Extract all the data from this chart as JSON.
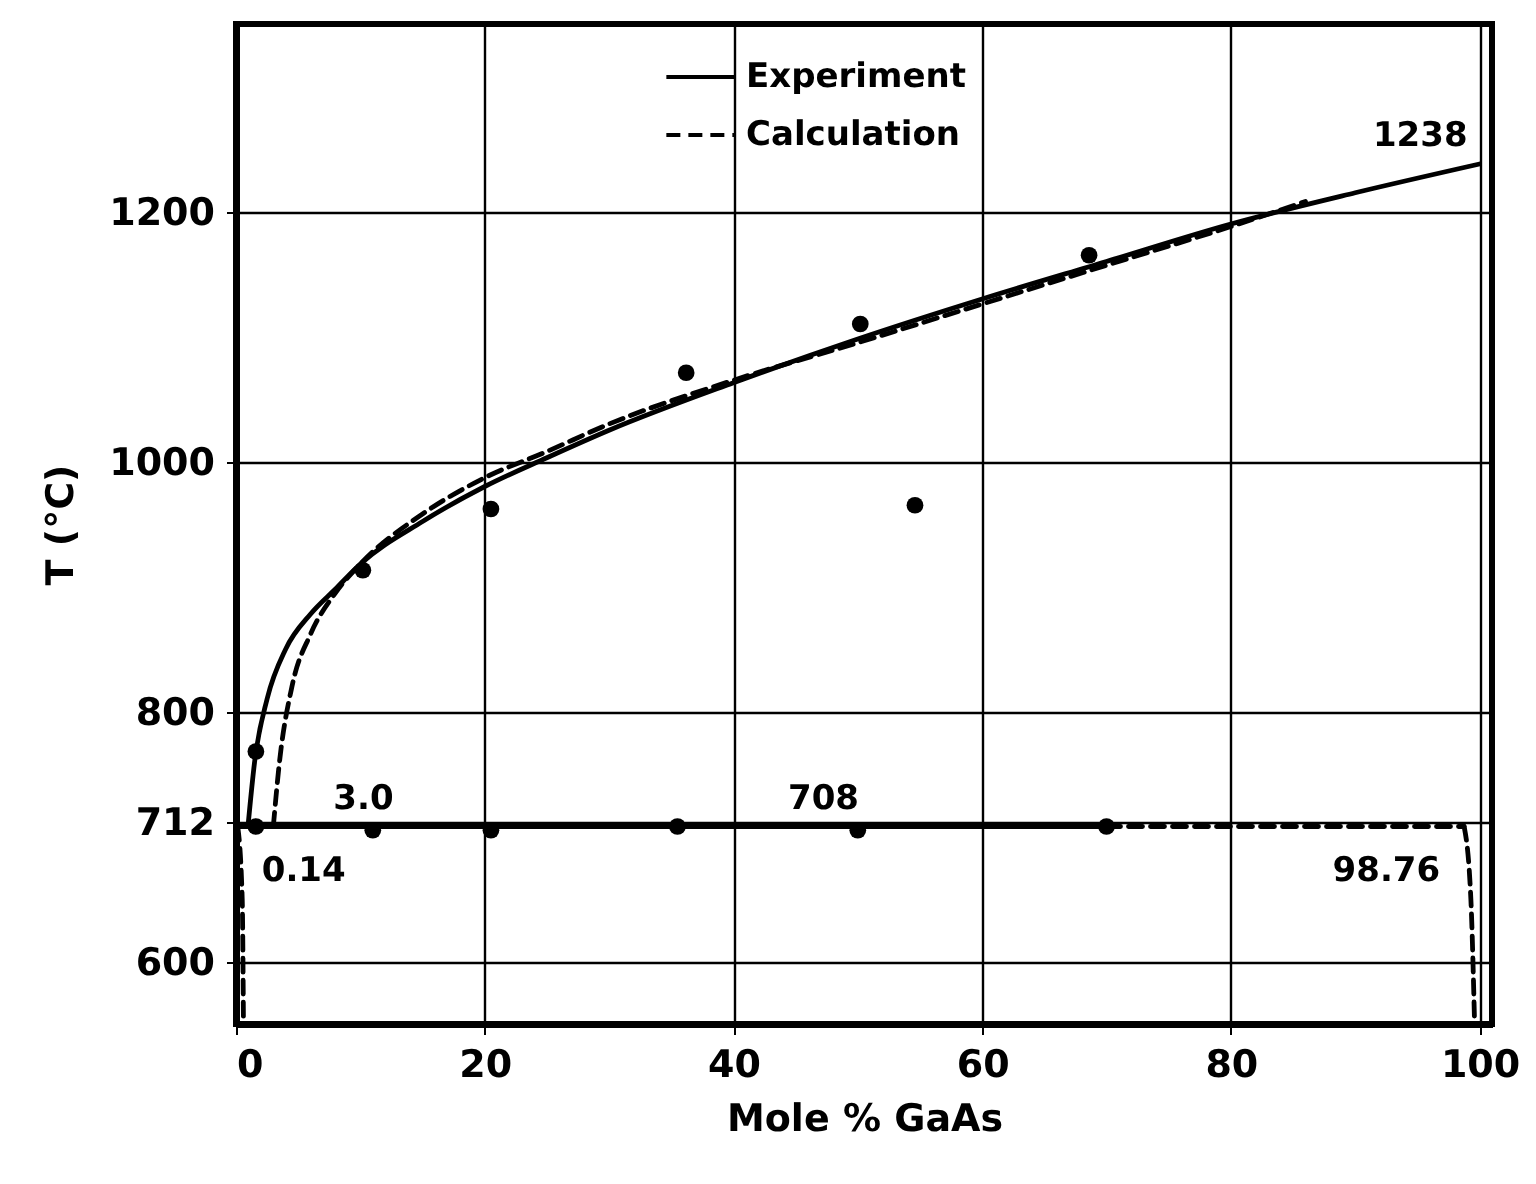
{
  "chart_data": {
    "type": "line",
    "xlabel": "Mole % GaAs",
    "ylabel": "T (°C)",
    "xlim": [
      0,
      101
    ],
    "ylim": [
      550,
      1350
    ],
    "xticks": [
      0,
      20,
      40,
      60,
      80,
      100
    ],
    "yticks": [
      600,
      712,
      800,
      1000,
      1200
    ],
    "grid": true,
    "legend": "top",
    "series": [
      {
        "name": "Experiment",
        "color": "#000000",
        "line_style": "solid",
        "x": [
          1,
          1.5,
          2.5,
          4,
          6,
          8,
          10,
          15,
          20,
          25,
          30,
          40,
          50,
          60,
          70,
          80,
          90,
          100
        ],
        "values": [
          712,
          760,
          810,
          850,
          878,
          898,
          918,
          952,
          980,
          1003,
          1025,
          1063,
          1098,
          1130,
          1160,
          1190,
          1215,
          1238
        ]
      },
      {
        "name": "Calculation",
        "color": "#000000",
        "line_style": "dashed",
        "x": [
          3,
          3.5,
          4.5,
          6,
          8,
          10,
          15,
          20,
          25,
          30,
          40,
          50,
          60,
          70,
          80,
          86
        ],
        "values": [
          708,
          760,
          820,
          862,
          895,
          918,
          958,
          987,
          1008,
          1030,
          1065,
          1095,
          1126,
          1157,
          1188,
          1208
        ]
      },
      {
        "type": "line",
        "color": "#000000",
        "line_style": "solid",
        "x": [
          0.14,
          70
        ],
        "values": [
          708,
          708
        ]
      },
      {
        "type": "line",
        "color": "#000000",
        "line_style": "dashed",
        "x": [
          70,
          98.76
        ],
        "values": [
          708,
          708
        ]
      },
      {
        "type": "line",
        "color": "#000000",
        "line_style": "dashed",
        "x": [
          0.14,
          0.5,
          0.6
        ],
        "values": [
          708,
          650,
          550
        ]
      },
      {
        "type": "line",
        "color": "#000000",
        "line_style": "dashed",
        "x": [
          98.76,
          99.3,
          99.6
        ],
        "values": [
          708,
          650,
          550
        ]
      },
      {
        "type": "scatter",
        "color": "#000000",
        "marker": "circle",
        "x": [
          1.6,
          10.2,
          20.5,
          36.2,
          50.2,
          54.6,
          68.6,
          1.6,
          11,
          20.5,
          35.5,
          50,
          70
        ],
        "values": [
          768,
          913,
          962,
          1071,
          1110,
          965,
          1165,
          708,
          705,
          705,
          708,
          705,
          708
        ]
      }
    ],
    "annotations": [
      {
        "text": "1238",
        "x": 100,
        "y": 1238
      },
      {
        "text": "708",
        "x": 46,
        "y": 708
      },
      {
        "text": "3.0",
        "x": 3.0,
        "y": 708
      },
      {
        "text": "0.14",
        "x": 0.14,
        "y": 708
      },
      {
        "text": "98.76",
        "x": 98.76,
        "y": 708
      }
    ]
  }
}
